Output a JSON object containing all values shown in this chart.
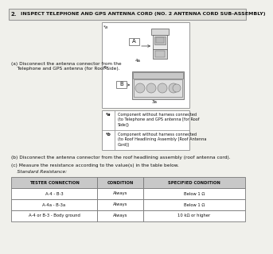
{
  "title_num": "2.",
  "title_text": "INSPECT TELEPHONE AND GPS ANTENNA CORD (NO. 2 ANTENNA CORD SUB-ASSEMBLY)",
  "step_a_line1": "(a) Disconnect the antenna connector from the",
  "step_a_line2": "    Telephone and GPS antenna (for Roof Side).",
  "step_b_text": "(b) Disconnect the antenna connector from the roof headlining assembly (roof antenna cord).",
  "step_c_text": "(c) Measure the resistance according to the value(s) in the table below.",
  "step_c2_text": "    Standard Resistance:",
  "legend_a_label": "*a",
  "legend_a_text": "Component without harness connected\n(to Telephone and GPS antenna [for Roof\nSide])",
  "legend_b_label": "*b",
  "legend_b_text": "Component without harness connected\n(to Roof Headlining Assembly [Roof Antenna\nCord])",
  "table_headers": [
    "TESTER CONNECTION",
    "CONDITION",
    "SPECIFIED CONDITION"
  ],
  "table_rows": [
    [
      "A-4 - B-3",
      "Always",
      "Below 1 Ω"
    ],
    [
      "A-4a - B-3a",
      "Always",
      "Below 1 Ω"
    ],
    [
      "A-4 or B-3 - Body ground",
      "Always",
      "10 kΩ or higher"
    ]
  ],
  "bg_color": "#f0f0eb",
  "border_color": "#999999",
  "header_bg": "#c8c8c8",
  "table_border": "#777777",
  "text_color": "#111111",
  "title_bg": "#e0e0da",
  "diag_bg": "#ffffff",
  "legend_bg": "#ffffff"
}
